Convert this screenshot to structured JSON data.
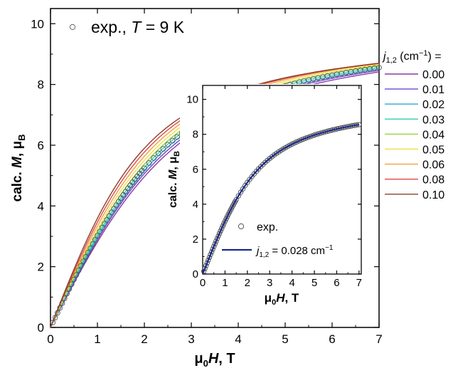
{
  "chart_data": [
    {
      "type": "line",
      "panel": "main",
      "xlabel": {
        "prefix": "μ",
        "prefix_sub": "0",
        "main": "H",
        "suffix": ", T"
      },
      "ylabel": {
        "prefix": "calc. ",
        "main": "M",
        "suffix": ", μ",
        "suffix_sub": "B"
      },
      "xlim": [
        0,
        7
      ],
      "ylim": [
        0,
        10.5
      ],
      "xticks": [
        "0",
        "1",
        "2",
        "3",
        "4",
        "5",
        "6",
        "7"
      ],
      "yticks": [
        "0",
        "2",
        "4",
        "6",
        "8",
        "10"
      ],
      "legend_title": {
        "j": "j",
        "sub": "1,2",
        "rest": " (cm",
        "sup": "−1",
        "end": ") ="
      },
      "series": [
        {
          "name": "0.00",
          "color": "#8a3ca8",
          "Msat": 10.03,
          "k": 0.885
        },
        {
          "name": "0.01",
          "color": "#6a48d8",
          "Msat": 10.04,
          "k": 0.91
        },
        {
          "name": "0.02",
          "color": "#2ea8d8",
          "Msat": 10.05,
          "k": 0.935
        },
        {
          "name": "0.03",
          "color": "#30d0a8",
          "Msat": 10.06,
          "k": 0.96
        },
        {
          "name": "0.04",
          "color": "#98d040",
          "Msat": 10.07,
          "k": 0.99
        },
        {
          "name": "0.05",
          "color": "#f0e048",
          "Msat": 10.05,
          "k": 1.03
        },
        {
          "name": "0.06",
          "color": "#f0a048",
          "Msat": 10.02,
          "k": 1.075
        },
        {
          "name": "0.08",
          "color": "#e04848",
          "Msat": 9.96,
          "k": 1.13
        },
        {
          "name": "0.10",
          "color": "#8a4028",
          "Msat": 9.88,
          "k": 1.19
        }
      ],
      "experiment": {
        "label_prefix": "exp., ",
        "label_var": "T",
        "label_suffix": " = 9 K",
        "Msat": 10.06,
        "k": 0.955,
        "x_points": [
          0.05,
          0.1,
          0.15,
          0.2,
          0.25,
          0.3,
          0.35,
          0.4,
          0.45,
          0.5,
          0.55,
          0.6,
          0.65,
          0.7,
          0.75,
          0.8,
          0.85,
          0.9,
          0.95,
          1.0,
          1.05,
          1.1,
          1.15,
          1.2,
          1.25,
          1.3,
          1.35,
          1.4,
          1.45,
          1.5,
          1.55,
          1.6,
          1.65,
          1.7,
          1.75,
          1.8,
          1.85,
          1.9,
          1.95,
          2.0,
          2.1,
          2.2,
          2.3,
          2.4,
          2.5,
          2.6,
          2.7,
          2.8,
          2.9,
          3.0,
          3.1,
          3.2,
          3.3,
          3.4,
          3.5,
          3.6,
          3.7,
          3.8,
          3.9,
          4.0,
          4.1,
          4.2,
          4.3,
          4.4,
          4.5,
          4.6,
          4.7,
          4.8,
          4.9,
          5.0,
          5.1,
          5.2,
          5.3,
          5.4,
          5.5,
          5.6,
          5.7,
          5.8,
          5.9,
          6.0,
          6.1,
          6.2,
          6.3,
          6.4,
          6.5,
          6.6,
          6.7,
          6.8,
          6.9,
          7.0
        ]
      }
    },
    {
      "type": "line",
      "panel": "inset",
      "xlabel": {
        "prefix": "μ",
        "prefix_sub": "0",
        "main": "H",
        "suffix": ", T"
      },
      "ylabel": {
        "prefix": "calc. ",
        "main": "M",
        "suffix": ", μ",
        "suffix_sub": "B"
      },
      "xlim": [
        0,
        7.1
      ],
      "ylim": [
        0,
        10.8
      ],
      "xticks": [
        "0",
        "1",
        "2",
        "3",
        "4",
        "5",
        "6",
        "7"
      ],
      "yticks": [
        "0",
        "2",
        "4",
        "6",
        "8",
        "10"
      ],
      "fit": {
        "color": "#1a2a8a",
        "label_j": "j",
        "label_sub": "1,2",
        "label_mid": " = 0.028 cm",
        "label_sup": "−1",
        "Msat": 10.06,
        "k": 0.955
      },
      "experiment": {
        "label": "exp.",
        "Msat": 10.06,
        "k": 0.955,
        "x_points": [
          0.05,
          0.1,
          0.15,
          0.2,
          0.25,
          0.3,
          0.35,
          0.4,
          0.45,
          0.5,
          0.55,
          0.6,
          0.65,
          0.7,
          0.75,
          0.8,
          0.85,
          0.9,
          0.95,
          1.0,
          1.05,
          1.1,
          1.15,
          1.2,
          1.25,
          1.3,
          1.35,
          1.4,
          1.45,
          1.5,
          1.6,
          1.7,
          1.8,
          1.9,
          2.0,
          2.1,
          2.2,
          2.3,
          2.4,
          2.5,
          2.6,
          2.7,
          2.8,
          2.9,
          3.0,
          3.1,
          3.2,
          3.3,
          3.4,
          3.5,
          3.6,
          3.7,
          3.8,
          3.9,
          4.0,
          4.1,
          4.2,
          4.3,
          4.4,
          4.5,
          4.6,
          4.7,
          4.8,
          4.9,
          5.0,
          5.1,
          5.2,
          5.3,
          5.4,
          5.5,
          5.6,
          5.7,
          5.8,
          5.9,
          6.0,
          6.1,
          6.2,
          6.3,
          6.4,
          6.5,
          6.6,
          6.7,
          6.8,
          6.9,
          7.0
        ]
      }
    }
  ]
}
